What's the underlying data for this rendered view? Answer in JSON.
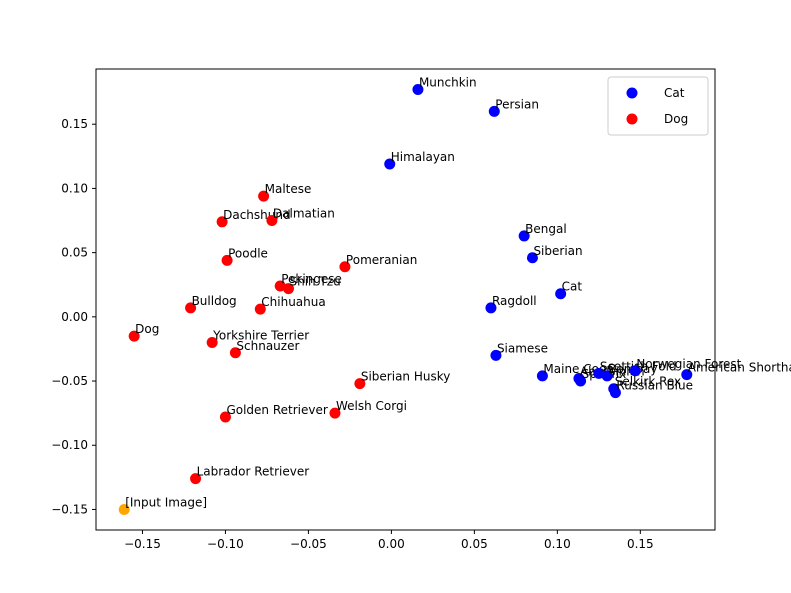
{
  "chart_data": {
    "type": "scatter",
    "title": "",
    "xlabel": "",
    "ylabel": "",
    "xlim": [
      -0.178,
      0.195
    ],
    "ylim": [
      -0.166,
      0.193
    ],
    "xticks": [
      {
        "value": -0.15,
        "label": "−0.15"
      },
      {
        "value": -0.1,
        "label": "−0.10"
      },
      {
        "value": -0.05,
        "label": "−0.05"
      },
      {
        "value": 0.0,
        "label": "0.00"
      },
      {
        "value": 0.05,
        "label": "0.05"
      },
      {
        "value": 0.1,
        "label": "0.10"
      },
      {
        "value": 0.15,
        "label": "0.15"
      }
    ],
    "yticks": [
      {
        "value": 0.15,
        "label": "0.15"
      },
      {
        "value": 0.1,
        "label": "0.10"
      },
      {
        "value": 0.05,
        "label": "0.05"
      },
      {
        "value": 0.0,
        "label": "0.00"
      },
      {
        "value": -0.05,
        "label": "−0.05"
      },
      {
        "value": -0.1,
        "label": "−0.10"
      },
      {
        "value": -0.15,
        "label": "−0.15"
      }
    ],
    "legend": {
      "position": "upper-right",
      "entries": [
        {
          "label": "Cat",
          "color": "#0000ff"
        },
        {
          "label": "Dog",
          "color": "#ff0000"
        }
      ]
    },
    "series": [
      {
        "name": "Cat",
        "color": "#0000ff",
        "points": [
          {
            "label": "Munchkin",
            "x": 0.016,
            "y": 0.177
          },
          {
            "label": "Persian",
            "x": 0.062,
            "y": 0.16
          },
          {
            "label": "Himalayan",
            "x": -0.001,
            "y": 0.119
          },
          {
            "label": "Bengal",
            "x": 0.08,
            "y": 0.063
          },
          {
            "label": "Siberian",
            "x": 0.085,
            "y": 0.046
          },
          {
            "label": "Cat",
            "x": 0.102,
            "y": 0.018
          },
          {
            "label": "Ragdoll",
            "x": 0.06,
            "y": 0.007
          },
          {
            "label": "Siamese",
            "x": 0.063,
            "y": -0.03
          },
          {
            "label": "Maine Coon",
            "x": 0.091,
            "y": -0.046
          },
          {
            "label": "Abyssinian",
            "x": 0.113,
            "y": -0.048
          },
          {
            "label": "Sphynx",
            "x": 0.114,
            "y": -0.05
          },
          {
            "label": "Scottish Fold",
            "x": 0.125,
            "y": -0.044
          },
          {
            "label": "Bombay",
            "x": 0.13,
            "y": -0.046
          },
          {
            "label": "Norwegian Forest",
            "x": 0.147,
            "y": -0.042
          },
          {
            "label": "American Shorthair",
            "x": 0.178,
            "y": -0.045
          },
          {
            "label": "Selkirk Rex",
            "x": 0.134,
            "y": -0.056
          },
          {
            "label": "Russian Blue",
            "x": 0.135,
            "y": -0.059
          }
        ]
      },
      {
        "name": "Dog",
        "color": "#ff0000",
        "points": [
          {
            "label": "Maltese",
            "x": -0.077,
            "y": 0.094
          },
          {
            "label": "Dachshund",
            "x": -0.102,
            "y": 0.074
          },
          {
            "label": "Dalmatian",
            "x": -0.072,
            "y": 0.075
          },
          {
            "label": "Poodle",
            "x": -0.099,
            "y": 0.044
          },
          {
            "label": "Pomeranian",
            "x": -0.028,
            "y": 0.039
          },
          {
            "label": "Pekingese",
            "x": -0.067,
            "y": 0.024
          },
          {
            "label": "Shih Tzu",
            "x": -0.062,
            "y": 0.022
          },
          {
            "label": "Bulldog",
            "x": -0.121,
            "y": 0.007
          },
          {
            "label": "Chihuahua",
            "x": -0.079,
            "y": 0.006
          },
          {
            "label": "Dog",
            "x": -0.155,
            "y": -0.015
          },
          {
            "label": "Yorkshire Terrier",
            "x": -0.108,
            "y": -0.02
          },
          {
            "label": "Schnauzer",
            "x": -0.094,
            "y": -0.028
          },
          {
            "label": "Siberian Husky",
            "x": -0.019,
            "y": -0.052
          },
          {
            "label": "Welsh Corgi",
            "x": -0.034,
            "y": -0.075
          },
          {
            "label": "Golden Retriever",
            "x": -0.1,
            "y": -0.078
          },
          {
            "label": "Labrador Retriever",
            "x": -0.118,
            "y": -0.126
          }
        ]
      },
      {
        "name": "Input",
        "color": "#ffa500",
        "points": [
          {
            "label": "[Input Image]",
            "x": -0.161,
            "y": -0.15
          }
        ]
      }
    ]
  }
}
